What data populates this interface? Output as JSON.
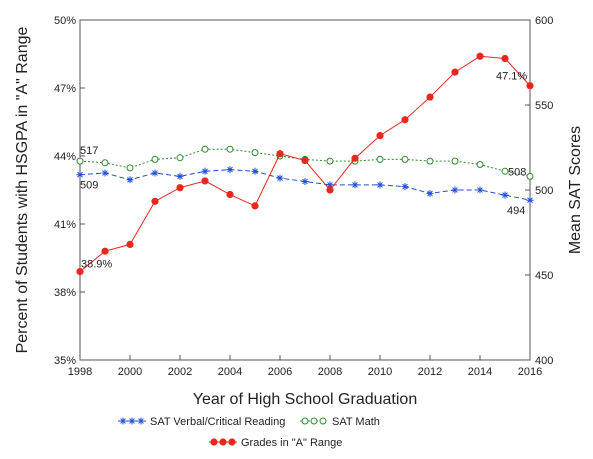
{
  "chart_data": {
    "type": "line",
    "xlabel": "Year of High School Graduation",
    "ylabel_left": "Percent of Students with HSGPA in \"A\" Range",
    "ylabel_right": "Mean SAT Scores",
    "x": [
      1998,
      1999,
      2000,
      2001,
      2002,
      2003,
      2004,
      2005,
      2006,
      2007,
      2008,
      2009,
      2010,
      2011,
      2012,
      2013,
      2014,
      2015,
      2016
    ],
    "x_ticks": [
      1998,
      2000,
      2002,
      2004,
      2006,
      2008,
      2010,
      2012,
      2014,
      2016
    ],
    "x_tick_labels": [
      "1998",
      "2000",
      "2002",
      "2004",
      "2006",
      "2008",
      "2010",
      "2012",
      "2014",
      "2016"
    ],
    "xlim": [
      1998,
      2016
    ],
    "ylim_left": [
      35,
      50
    ],
    "ylim_right": [
      400,
      600
    ],
    "left_ticks": [
      "35%",
      "38%",
      "41%",
      "44%",
      "47%",
      "50%"
    ],
    "left_tick_values": [
      35,
      38,
      41,
      44,
      47,
      50
    ],
    "right_ticks": [
      "400",
      "450",
      "500",
      "550",
      "600"
    ],
    "right_tick_values": [
      400,
      450,
      500,
      550,
      600
    ],
    "series": [
      {
        "name": "SAT Verbal/Critical Reading",
        "axis": "right",
        "color": "#1f4fd6",
        "marker": "star",
        "dash": "dashed",
        "values": [
          509,
          510,
          506,
          510,
          508,
          511,
          512,
          511,
          507,
          505,
          503,
          503,
          503,
          502,
          498,
          500,
          500,
          497,
          494
        ]
      },
      {
        "name": "SAT Math",
        "axis": "right",
        "color": "#2e8b2e",
        "marker": "open-circle",
        "dash": "dotted",
        "values": [
          517,
          516,
          513,
          518,
          519,
          524,
          524,
          522,
          520,
          518,
          517,
          517,
          518,
          518,
          517,
          517,
          515,
          511,
          508
        ]
      },
      {
        "name": "Grades in \"A\" Range",
        "axis": "left",
        "color": "#e8281e",
        "marker": "filled-circle",
        "dash": "solid",
        "values": [
          38.9,
          39.8,
          40.1,
          42.0,
          42.6,
          42.9,
          42.3,
          41.8,
          44.1,
          43.8,
          42.5,
          43.9,
          44.9,
          45.6,
          46.6,
          47.7,
          48.4,
          48.3,
          47.1
        ]
      }
    ],
    "annotations": [
      {
        "text": "517",
        "series": 1,
        "index": 0,
        "pos": "above"
      },
      {
        "text": "509",
        "series": 0,
        "index": 0,
        "pos": "below"
      },
      {
        "text": "38.9%",
        "series": 2,
        "index": 0,
        "pos": "above-right"
      },
      {
        "text": "47.1%",
        "series": 2,
        "index": 18,
        "pos": "above-left"
      },
      {
        "text": "508",
        "series": 1,
        "index": 18,
        "pos": "left"
      },
      {
        "text": "494",
        "series": 0,
        "index": 18,
        "pos": "below-left"
      }
    ],
    "legend": [
      {
        "label": "SAT Verbal/Critical Reading",
        "series": 0
      },
      {
        "label": "SAT Math",
        "series": 1
      },
      {
        "label": "Grades in \"A\" Range",
        "series": 2
      }
    ],
    "legend_placement": "bottom",
    "grid": false
  }
}
